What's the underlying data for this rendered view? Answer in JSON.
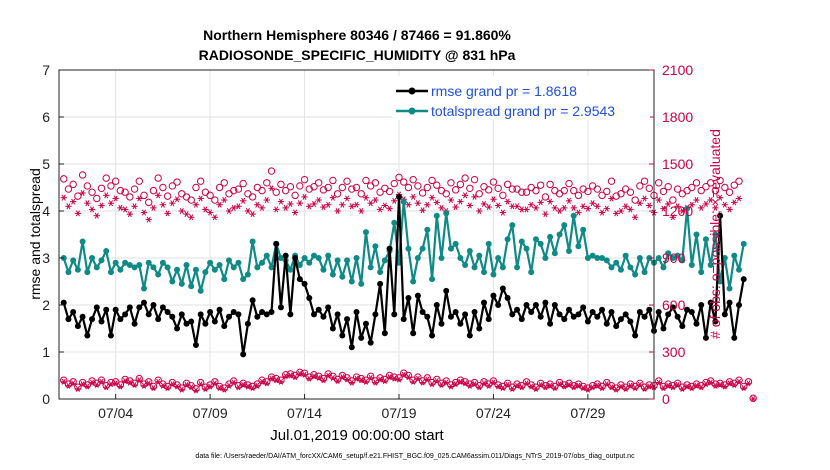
{
  "chart_data": {
    "type": "line",
    "title": "Northern Hemisphere 80346 / 87466 = 91.860%",
    "subtitle": "RADIOSONDE_SPECIFIC_HUMIDITY @ 831 hPa",
    "xlabel": "Jul.01,2019 00:00:00 start",
    "ylabel": "rmse and totalspread",
    "ylabel_right": "# of obs: o=possible; ×=evaluated",
    "ylim": [
      0,
      7
    ],
    "ylim_right": [
      0,
      2100
    ],
    "xlim": [
      1,
      32.5
    ],
    "yticks": [
      0,
      1,
      2,
      3,
      4,
      5,
      6,
      7
    ],
    "yticks_right": [
      0,
      300,
      600,
      900,
      1200,
      1500,
      1800,
      2100
    ],
    "xticks": [
      {
        "day": 4,
        "label": "07/04"
      },
      {
        "day": 9,
        "label": "07/09"
      },
      {
        "day": 14,
        "label": "07/14"
      },
      {
        "day": 19,
        "label": "07/19"
      },
      {
        "day": 24,
        "label": "07/24"
      },
      {
        "day": 29,
        "label": "07/29"
      }
    ],
    "grid": true,
    "legend_position": "top-right",
    "x_start": 1.25,
    "x_step": 0.25,
    "series": [
      {
        "name": "rmse",
        "legend": "rmse grand pr = 1.8618",
        "color": "#000000",
        "marker": "asterisk",
        "values": [
          2.05,
          1.7,
          1.85,
          1.55,
          1.75,
          1.35,
          1.7,
          1.95,
          1.65,
          1.9,
          1.35,
          1.9,
          1.7,
          1.8,
          1.95,
          1.6,
          1.95,
          2.05,
          1.8,
          2.0,
          1.7,
          1.95,
          1.85,
          1.75,
          1.5,
          1.8,
          1.6,
          1.65,
          1.15,
          1.8,
          1.6,
          1.85,
          1.65,
          1.9,
          1.55,
          1.75,
          1.85,
          1.8,
          0.95,
          1.6,
          2.1,
          1.75,
          1.85,
          1.8,
          1.85,
          3.3,
          1.95,
          3.05,
          1.8,
          3.0,
          2.55,
          2.45,
          2.15,
          1.8,
          1.9,
          1.75,
          1.95,
          1.5,
          1.8,
          1.35,
          1.7,
          1.1,
          1.85,
          1.3,
          1.6,
          1.2,
          1.8,
          2.45,
          1.4,
          3.2,
          1.8,
          4.3,
          1.7,
          2.15,
          1.4,
          2.2,
          1.85,
          1.75,
          1.35,
          2.0,
          1.6,
          2.3,
          1.75,
          1.85,
          1.6,
          1.8,
          1.35,
          1.85,
          1.5,
          2.05,
          1.7,
          2.2,
          2.0,
          2.35,
          2.15,
          1.8,
          1.9,
          1.7,
          2.0,
          1.85,
          2.0,
          1.75,
          2.05,
          1.6,
          2.0,
          1.8,
          1.7,
          1.9,
          1.75,
          1.8,
          1.95,
          1.65,
          1.85,
          1.75,
          1.9,
          1.6,
          1.85,
          1.55,
          1.7,
          1.8,
          1.65,
          1.35,
          1.85,
          1.75,
          1.9,
          1.45,
          1.85,
          1.5,
          1.8,
          1.95,
          1.75,
          1.55,
          1.9,
          1.85,
          1.6,
          2.0,
          1.3,
          2.05,
          1.65,
          3.9,
          1.8,
          2.05,
          1.3,
          2.0,
          2.55
        ]
      },
      {
        "name": "totalspread",
        "legend": "totalspread grand pr = 2.9543",
        "color": "#0f8a87",
        "marker": "dot",
        "values": [
          3.0,
          2.7,
          2.95,
          2.75,
          3.35,
          2.7,
          3.0,
          2.8,
          2.95,
          3.15,
          2.7,
          2.9,
          2.75,
          2.9,
          2.85,
          2.8,
          2.85,
          2.35,
          2.9,
          2.8,
          2.65,
          2.9,
          2.8,
          2.5,
          2.75,
          2.45,
          2.85,
          2.4,
          2.75,
          2.3,
          2.7,
          2.9,
          2.75,
          2.85,
          2.55,
          2.95,
          2.8,
          2.9,
          2.55,
          2.65,
          3.35,
          2.8,
          2.9,
          3.05,
          2.8,
          3.3,
          3.0,
          2.95,
          2.75,
          3.05,
          2.85,
          3.0,
          2.9,
          3.05,
          3.0,
          2.75,
          3.05,
          2.65,
          2.95,
          2.6,
          2.95,
          2.5,
          3.0,
          2.45,
          3.55,
          2.8,
          3.25,
          2.7,
          2.95,
          3.15,
          3.75,
          2.9,
          4.2,
          3.2,
          2.5,
          3.0,
          3.2,
          3.6,
          2.55,
          3.9,
          3.0,
          3.95,
          3.2,
          3.3,
          3.0,
          2.85,
          3.15,
          2.8,
          3.05,
          2.7,
          3.3,
          2.65,
          3.0,
          2.8,
          3.4,
          3.7,
          2.8,
          3.35,
          3.2,
          2.7,
          3.4,
          3.3,
          3.0,
          3.45,
          3.1,
          3.5,
          3.7,
          3.15,
          3.9,
          3.25,
          3.6,
          3.0,
          3.05,
          3.0,
          3.0,
          2.95,
          2.8,
          2.9,
          2.75,
          3.05,
          2.8,
          2.65,
          3.0,
          2.7,
          3.0,
          2.9,
          3.0,
          2.8,
          3.1,
          3.0,
          3.05,
          2.95,
          4.05,
          2.85,
          3.5,
          2.7,
          3.4,
          2.85,
          3.5,
          2.5,
          3.0,
          2.35,
          3.05,
          2.75,
          3.3
        ]
      },
      {
        "name": "obs possible",
        "color": "#cc0044",
        "marker": "circle",
        "axis": "right",
        "values": [
          1405,
          1340,
          1370,
          1295,
          1430,
          1360,
          1320,
          1280,
          1345,
          1410,
          1360,
          1390,
          1330,
          1320,
          1290,
          1340,
          1390,
          1300,
          1255,
          1330,
          1410,
          1350,
          1295,
          1360,
          1385,
          1310,
          1290,
          1270,
          1350,
          1390,
          1320,
          1300,
          1270,
          1350,
          1380,
          1310,
          1330,
          1340,
          1375,
          1310,
          1290,
          1350,
          1330,
          1380,
          1455,
          1320,
          1370,
          1330,
          1355,
          1300,
          1360,
          1400,
          1340,
          1355,
          1380,
          1335,
          1350,
          1395,
          1310,
          1350,
          1390,
          1340,
          1350,
          1310,
          1395,
          1360,
          1380,
          1320,
          1345,
          1325,
          1375,
          1415,
          1385,
          1350,
          1400,
          1360,
          1315,
          1350,
          1395,
          1365,
          1330,
          1310,
          1380,
          1335,
          1370,
          1410,
          1345,
          1400,
          1310,
          1355,
          1335,
          1385,
          1345,
          1300,
          1370,
          1340,
          1340,
          1320,
          1320,
          1350,
          1330,
          1365,
          1290,
          1370,
          1330,
          1310,
          1330,
          1375,
          1330,
          1300,
          1340,
          1325,
          1360,
          1340,
          1300,
          1325,
          1390,
          1295,
          1310,
          1340,
          1320,
          1270,
          1360,
          1390,
          1345,
          1300,
          1380,
          1325,
          1355,
          1270,
          1340,
          1310,
          1330,
          1350,
          1380,
          1330,
          1355,
          1380,
          1330,
          1395,
          1350,
          1320,
          1365,
          1390
        ]
      },
      {
        "name": "obs evaluated",
        "color": "#cc0044",
        "marker": "star",
        "axis": "right",
        "values": [
          1285,
          1230,
          1260,
          1185,
          1315,
          1250,
          1210,
          1170,
          1235,
          1300,
          1250,
          1280,
          1220,
          1210,
          1180,
          1230,
          1280,
          1190,
          1145,
          1220,
          1300,
          1240,
          1185,
          1250,
          1275,
          1200,
          1180,
          1160,
          1240,
          1280,
          1210,
          1190,
          1160,
          1240,
          1270,
          1200,
          1220,
          1230,
          1265,
          1200,
          1180,
          1240,
          1220,
          1270,
          1345,
          1210,
          1260,
          1220,
          1245,
          1190,
          1250,
          1290,
          1230,
          1245,
          1270,
          1225,
          1240,
          1285,
          1200,
          1240,
          1280,
          1230,
          1240,
          1200,
          1285,
          1250,
          1270,
          1210,
          1235,
          1215,
          1265,
          1305,
          1275,
          1240,
          1290,
          1250,
          1205,
          1240,
          1285,
          1255,
          1220,
          1200,
          1270,
          1225,
          1260,
          1300,
          1235,
          1290,
          1200,
          1245,
          1225,
          1275,
          1235,
          1190,
          1260,
          1230,
          1230,
          1210,
          1210,
          1240,
          1220,
          1255,
          1180,
          1260,
          1220,
          1200,
          1220,
          1265,
          1220,
          1190,
          1230,
          1215,
          1250,
          1230,
          1190,
          1215,
          1280,
          1185,
          1200,
          1230,
          1210,
          1160,
          1250,
          1280,
          1235,
          1190,
          1270,
          1215,
          1245,
          1160,
          1230,
          1200,
          1220,
          1240,
          1270,
          1220,
          1245,
          1270,
          1220,
          1285,
          1240,
          1210,
          1255,
          1280
        ]
      },
      {
        "name": "obs low possible",
        "color": "#cc0044",
        "marker": "circle",
        "axis": "right",
        "values": [
          120,
          95,
          110,
          75,
          105,
          90,
          115,
          100,
          120,
          85,
          105,
          110,
          90,
          125,
          115,
          100,
          130,
          95,
          110,
          80,
          120,
          95,
          80,
          105,
          90,
          70,
          100,
          85,
          65,
          105,
          75,
          90,
          110,
          80,
          70,
          95,
          115,
          85,
          100,
          90,
          80,
          95,
          120,
          110,
          140,
          130,
          120,
          155,
          160,
          150,
          170,
          165,
          140,
          155,
          145,
          130,
          160,
          145,
          125,
          150,
          135,
          115,
          140,
          130,
          120,
          145,
          115,
          135,
          125,
          150,
          140,
          135,
          165,
          150,
          120,
          140,
          115,
          135,
          105,
          125,
          100,
          115,
          90,
          105,
          120,
          110,
          95,
          105,
          85,
          110,
          95,
          115,
          90,
          80,
          100,
          75,
          95,
          85,
          110,
          90,
          75,
          100,
          85,
          95,
          80,
          105,
          90,
          100,
          85,
          95,
          80,
          70,
          85,
          95,
          80,
          105,
          85,
          70,
          90,
          75,
          95,
          80,
          100,
          75,
          90,
          85,
          115,
          80,
          95,
          85,
          100,
          75,
          90,
          80,
          95,
          85,
          105,
          115,
          95,
          100,
          90,
          110,
          100,
          120,
          80,
          110,
          5
        ]
      },
      {
        "name": "obs low evaluated",
        "color": "#cc0044",
        "marker": "star",
        "axis": "right",
        "values": [
          110,
          85,
          100,
          65,
          95,
          80,
          105,
          90,
          110,
          75,
          95,
          100,
          80,
          115,
          105,
          90,
          120,
          85,
          100,
          70,
          110,
          85,
          70,
          95,
          80,
          60,
          90,
          75,
          55,
          95,
          65,
          80,
          100,
          70,
          60,
          85,
          105,
          75,
          90,
          80,
          70,
          85,
          110,
          100,
          130,
          120,
          110,
          145,
          150,
          140,
          160,
          155,
          130,
          145,
          135,
          120,
          150,
          135,
          115,
          140,
          125,
          105,
          130,
          120,
          110,
          135,
          105,
          125,
          115,
          140,
          130,
          125,
          155,
          140,
          110,
          130,
          105,
          125,
          95,
          115,
          90,
          105,
          80,
          95,
          110,
          100,
          85,
          95,
          75,
          100,
          85,
          105,
          80,
          70,
          90,
          65,
          85,
          75,
          100,
          80,
          65,
          90,
          75,
          85,
          70,
          95,
          80,
          90,
          75,
          85,
          70,
          60,
          75,
          85,
          70,
          95,
          75,
          60,
          80,
          65,
          85,
          70,
          90,
          65,
          80,
          75,
          105,
          70,
          85,
          75,
          90,
          65,
          80,
          70,
          85,
          75,
          95,
          105,
          85,
          90,
          80,
          100,
          90,
          110,
          70,
          100,
          0
        ]
      }
    ]
  },
  "footnote": "data file: /Users/raeder/DAI/ATM_forcXX/CAM6_setup/f.e21.FHIST_BGC.f09_025.CAM6assim.011/Diags_NTrS_2019-07/obs_diag_output.nc"
}
